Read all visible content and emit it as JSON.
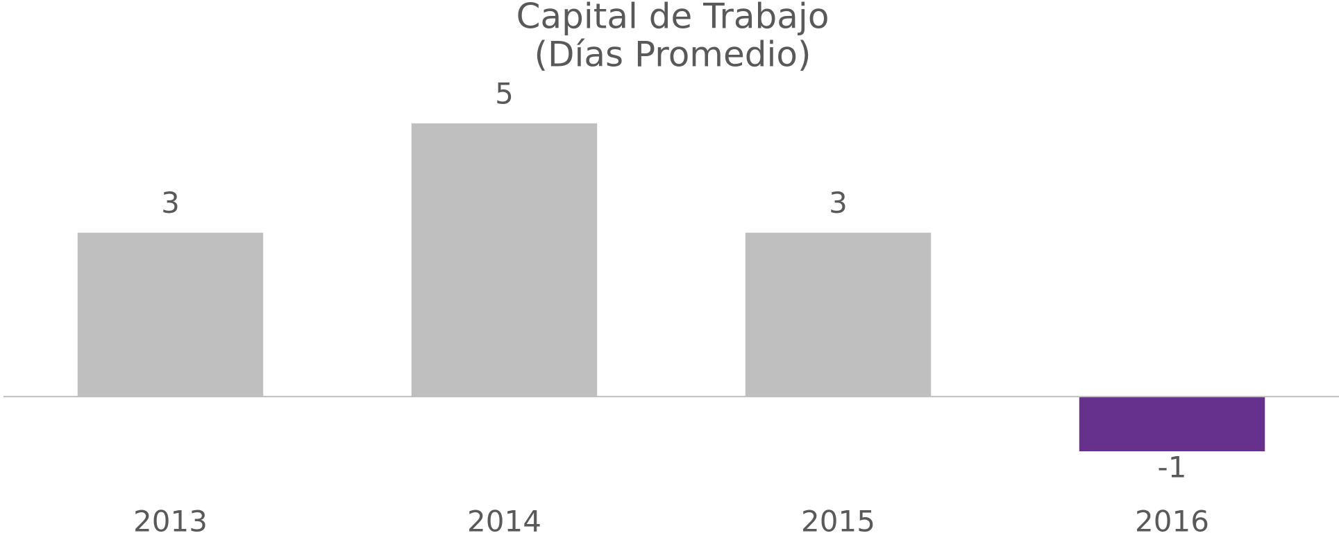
{
  "chart_data": {
    "type": "bar",
    "title": "Capital de Trabajo",
    "subtitle": "(Días Promedio)",
    "categories": [
      "2013",
      "2014",
      "2015",
      "2016"
    ],
    "values": [
      3,
      5,
      3,
      -1
    ],
    "colors": [
      "#bfbfbf",
      "#bfbfbf",
      "#bfbfbf",
      "#66308d"
    ]
  }
}
